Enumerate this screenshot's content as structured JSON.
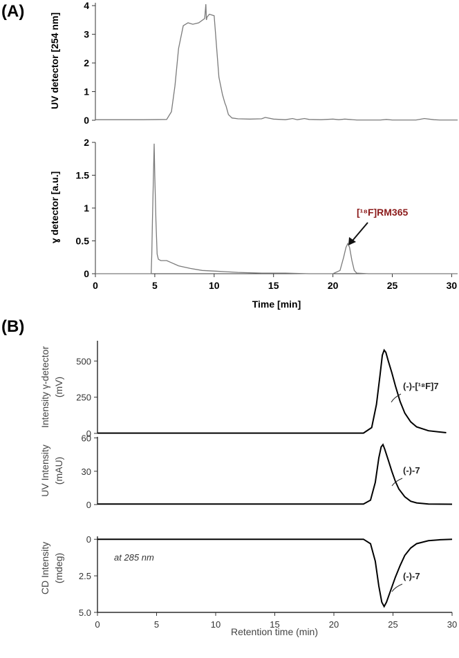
{
  "panel_labels": {
    "a": "(A)",
    "b": "(B)"
  },
  "chart_data": [
    {
      "id": "A_uv",
      "type": "line",
      "ylabel": "UV detector [254 nm]",
      "xlim": [
        0,
        30.5
      ],
      "ylim": [
        0,
        4.1
      ],
      "yticks": [
        0,
        1,
        2,
        3,
        4
      ],
      "grid": false,
      "series": [
        {
          "x": [
            0,
            4,
            6,
            6.4,
            6.7,
            7.0,
            7.4,
            7.8,
            8.2,
            8.7,
            9.2,
            9.3,
            9.35,
            9.4,
            9.6,
            10.0,
            10.4,
            10.7,
            10.9,
            11.0,
            11.2,
            11.5,
            12,
            13,
            14,
            14.3,
            15,
            16,
            16.6,
            17,
            17.6,
            18,
            19,
            20,
            20.5,
            21,
            22,
            24,
            24.5,
            25,
            27,
            27.7,
            28.5,
            29,
            30.5
          ],
          "y": [
            0.02,
            0.02,
            0.03,
            0.3,
            1.2,
            2.5,
            3.3,
            3.4,
            3.35,
            3.4,
            3.55,
            4.05,
            3.5,
            3.6,
            3.7,
            3.65,
            1.5,
            0.9,
            0.6,
            0.5,
            0.2,
            0.08,
            0.05,
            0.04,
            0.05,
            0.1,
            0.04,
            0.02,
            0.06,
            0.02,
            0.06,
            0.03,
            0.02,
            0.04,
            0.02,
            0.04,
            0.01,
            0.01,
            0.03,
            0.01,
            0.01,
            0.06,
            0.02,
            0.01,
            0.01
          ]
        }
      ]
    },
    {
      "id": "A_gamma",
      "type": "line",
      "ylabel": "ɣ detector [a.u.]",
      "xlabel": "Time [min]",
      "xlim": [
        0,
        30.5
      ],
      "ylim": [
        0,
        2
      ],
      "yticks": [
        0,
        0.5,
        1,
        1.5,
        2
      ],
      "yticklabels": [
        "0",
        "0.5",
        "1",
        "1.5",
        "2"
      ],
      "xticks": [
        0,
        5,
        10,
        15,
        20,
        25,
        30
      ],
      "grid": false,
      "annotation": {
        "text": "[¹⁸F]RM365",
        "x": 21.3,
        "y": 0.46
      },
      "series": [
        {
          "x": [
            0,
            4.7,
            4.75,
            4.8,
            4.9,
            4.95,
            5.0,
            5.1,
            5.2,
            5.3,
            5.5,
            6,
            6.5,
            7,
            8,
            9,
            10,
            11,
            12,
            14,
            16,
            18,
            20,
            20.6,
            20.9,
            21.1,
            21.25,
            21.4,
            21.6,
            21.8,
            22,
            23,
            25,
            27,
            30.5
          ],
          "y": [
            0.0,
            0.0,
            0.3,
            0.8,
            1.6,
            1.98,
            1.5,
            0.8,
            0.3,
            0.22,
            0.2,
            0.2,
            0.16,
            0.12,
            0.08,
            0.05,
            0.04,
            0.03,
            0.02,
            0.01,
            0.01,
            0.0,
            0.0,
            0.05,
            0.25,
            0.4,
            0.46,
            0.4,
            0.2,
            0.05,
            0.01,
            0.0,
            0.0,
            0.0,
            0.0
          ]
        }
      ]
    },
    {
      "id": "B_gamma",
      "type": "line",
      "ylabel": "Intensity γ-detector",
      "ylabel2": "(mV)",
      "xlim": [
        0,
        30
      ],
      "ylim": [
        0,
        640
      ],
      "yticks": [
        0,
        250,
        500
      ],
      "grid": false,
      "annotation": {
        "text": "(-)-[¹⁸F]7"
      },
      "series": [
        {
          "x": [
            0,
            22.5,
            23.2,
            23.6,
            23.9,
            24.1,
            24.25,
            24.4,
            24.6,
            24.9,
            25.2,
            25.6,
            26.0,
            26.5,
            27.0,
            28.0,
            29.5
          ],
          "y": [
            2,
            2,
            40,
            200,
            400,
            540,
            575,
            560,
            500,
            420,
            330,
            220,
            140,
            80,
            45,
            18,
            5
          ]
        }
      ]
    },
    {
      "id": "B_uv",
      "type": "line",
      "ylabel": "UV Intensity",
      "ylabel2": "(mAU)",
      "xlim": [
        0,
        30
      ],
      "ylim": [
        0,
        61
      ],
      "yticks": [
        0,
        30,
        60
      ],
      "grid": false,
      "annotation": {
        "text": "(-)-7"
      },
      "series": [
        {
          "x": [
            0,
            22.5,
            23.1,
            23.5,
            23.8,
            24.0,
            24.15,
            24.3,
            24.6,
            24.9,
            25.2,
            25.5,
            26.0,
            26.5,
            27.0,
            28.0,
            30
          ],
          "y": [
            0.5,
            0.5,
            4,
            20,
            42,
            52,
            54,
            50,
            40,
            30,
            21,
            14,
            7,
            3,
            1.5,
            0.5,
            0.3
          ]
        }
      ]
    },
    {
      "id": "B_cd",
      "type": "line",
      "ylabel": "CD Intensity",
      "ylabel2": "(mdeg)",
      "xlabel": "Retention time (min)",
      "xlim": [
        0,
        30
      ],
      "ylim": [
        5.0,
        -0.2
      ],
      "yticks": [
        0,
        2.5,
        5
      ],
      "yticklabels": [
        "0",
        "2.5",
        "5.0"
      ],
      "xticks": [
        0,
        5,
        10,
        15,
        20,
        25,
        30
      ],
      "grid": false,
      "annotations": [
        {
          "text": "at 285 nm"
        },
        {
          "text": "(-)-7"
        }
      ],
      "series": [
        {
          "x": [
            0,
            22.5,
            23.1,
            23.5,
            23.8,
            24.05,
            24.25,
            24.45,
            24.8,
            25.2,
            25.6,
            26.0,
            26.5,
            27.0,
            28.0,
            29,
            30
          ],
          "y": [
            0,
            0,
            0.3,
            1.5,
            3.2,
            4.3,
            4.6,
            4.3,
            3.5,
            2.6,
            1.8,
            1.1,
            0.6,
            0.3,
            0.1,
            0.03,
            0
          ]
        }
      ]
    }
  ]
}
